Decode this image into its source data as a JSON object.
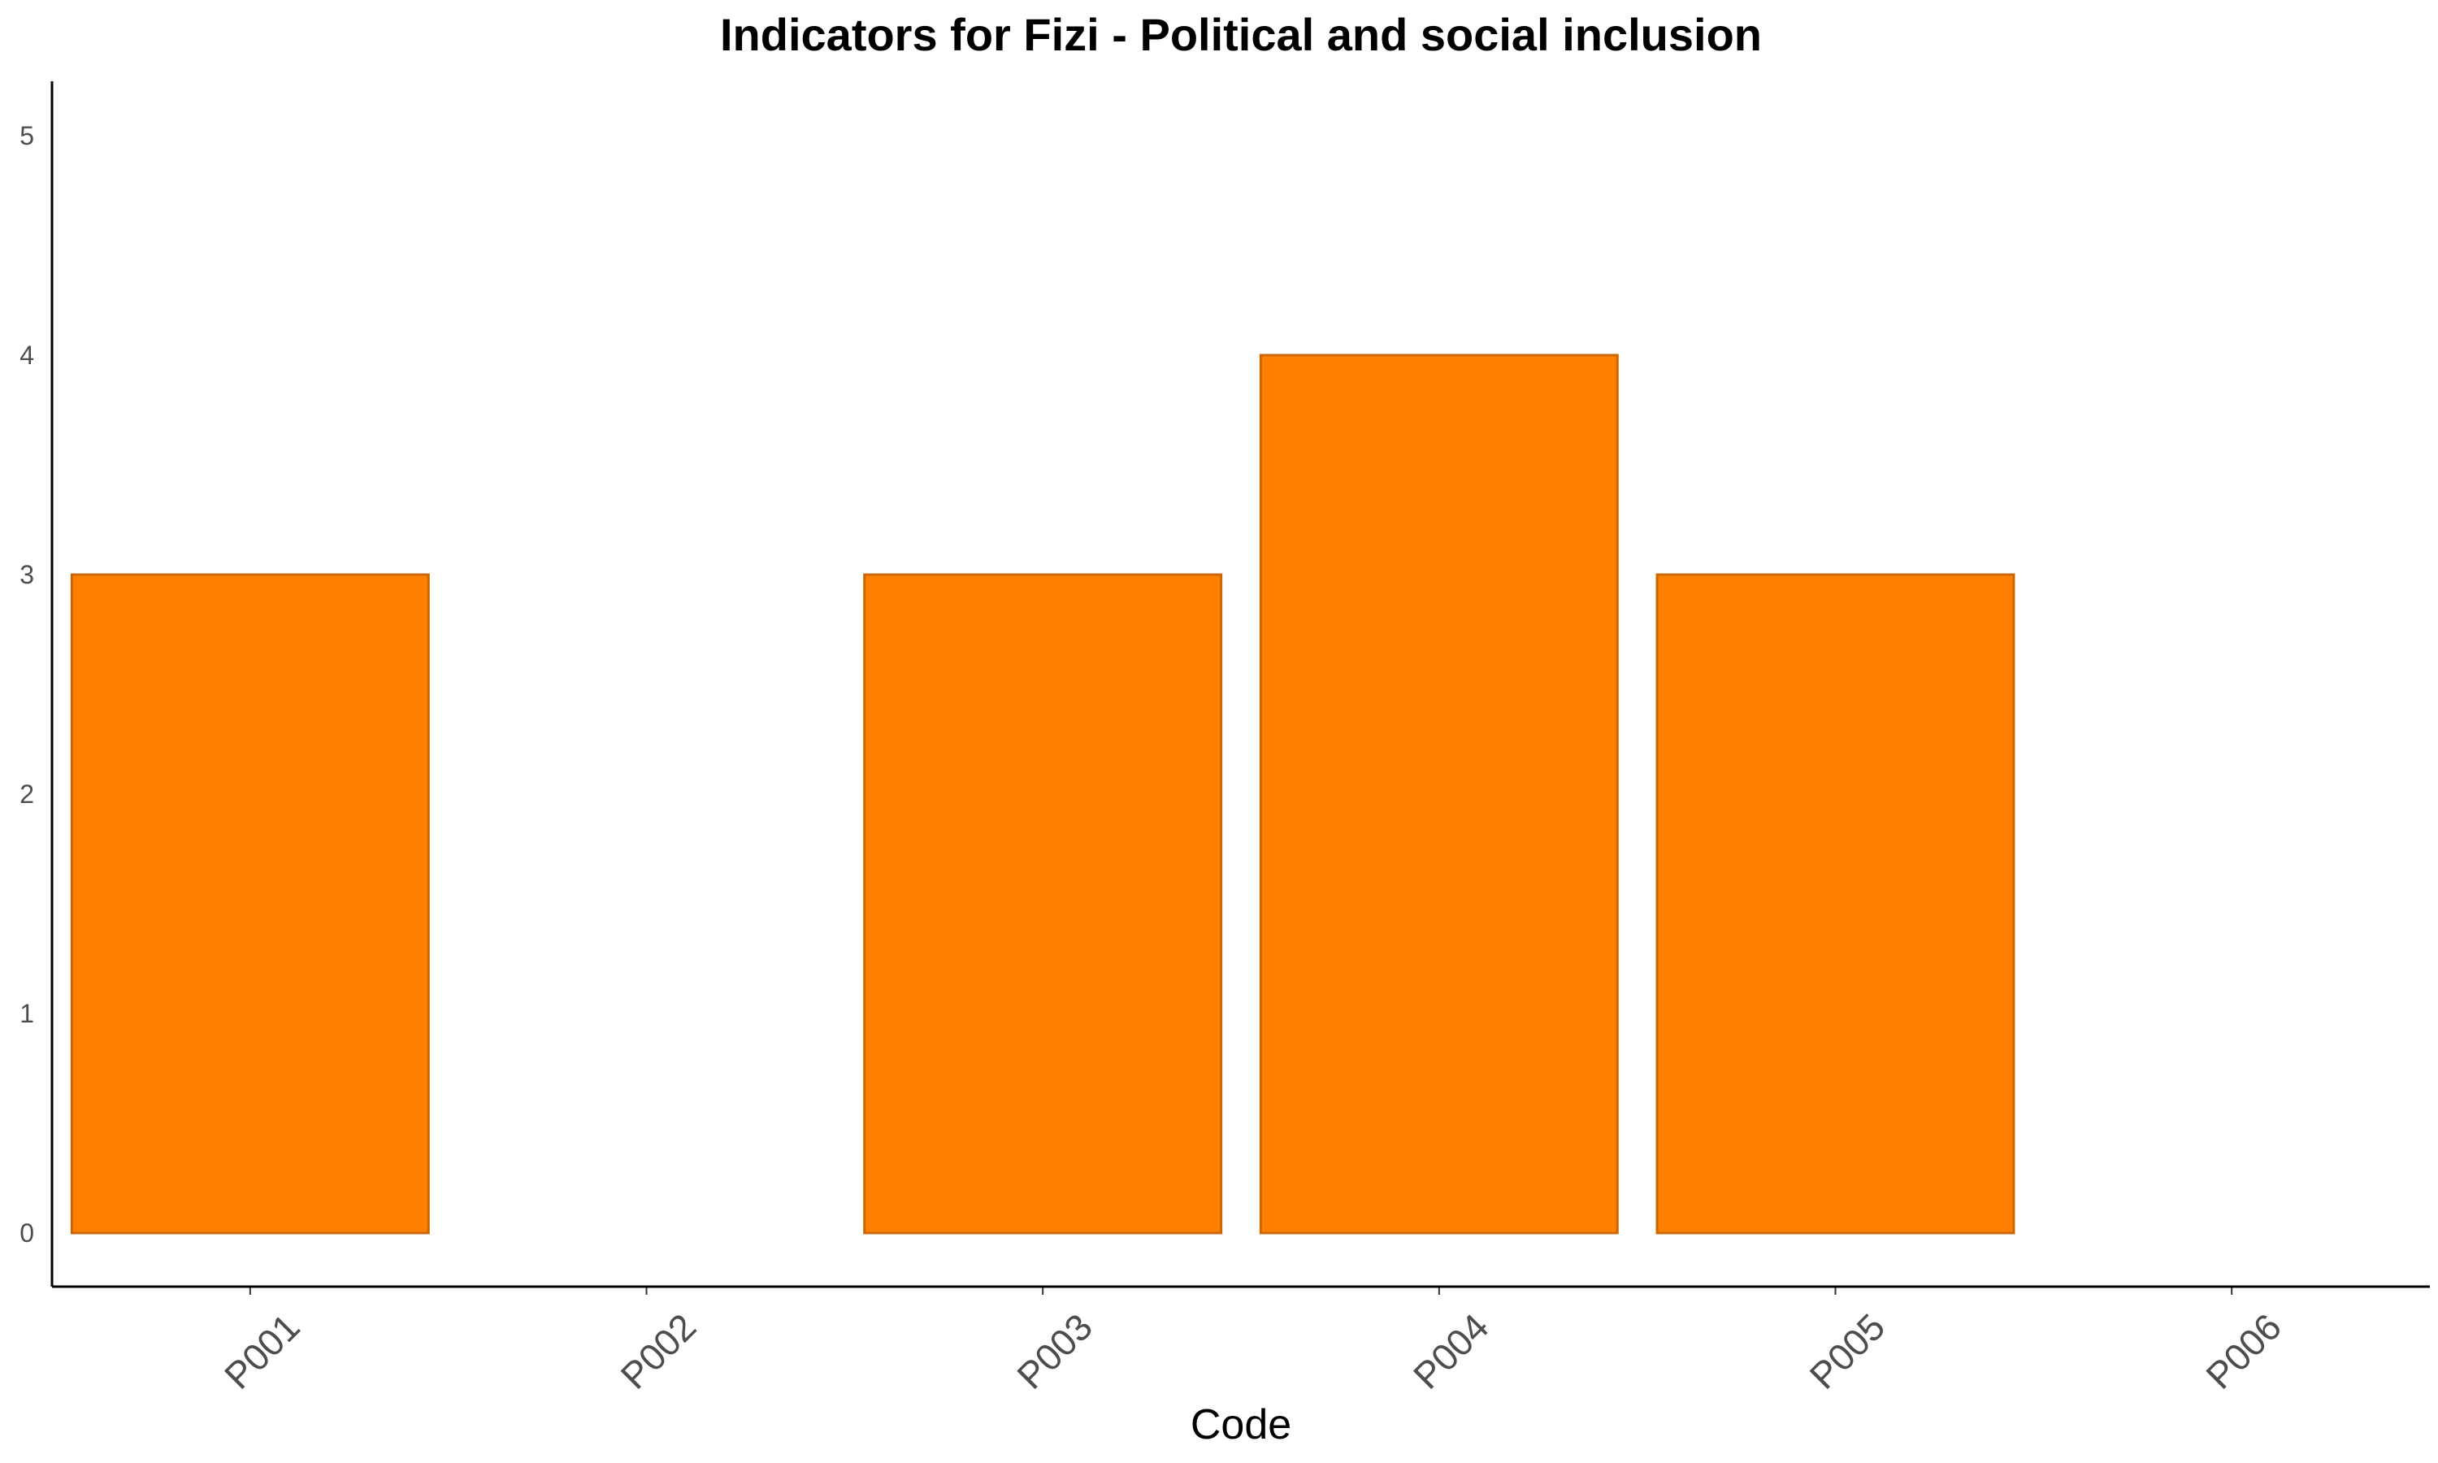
{
  "chart_data": {
    "type": "bar",
    "title": "Indicators for Fizi - Political and social inclusion",
    "xlabel": "Code",
    "ylabel": "",
    "categories": [
      "P001",
      "P002",
      "P003",
      "P004",
      "P005",
      "P006"
    ],
    "values": [
      3,
      0,
      3,
      4,
      3,
      0
    ],
    "ylim": [
      0,
      5
    ],
    "yticks": [
      0,
      1,
      2,
      3,
      4,
      5
    ],
    "grid": false,
    "legend": "none",
    "bar_fill": "#ff7f00",
    "bar_stroke": "#cc6600"
  }
}
